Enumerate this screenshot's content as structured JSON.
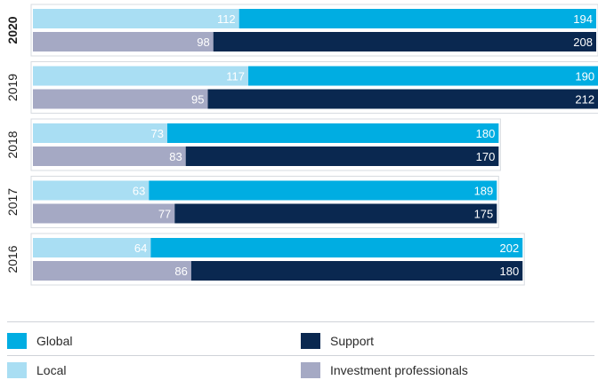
{
  "chart_data": {
    "type": "bar",
    "orientation": "horizontal-stacked",
    "groups": [
      "2020",
      "2019",
      "2018",
      "2017",
      "2016"
    ],
    "bold_group": "2020",
    "rows": [
      {
        "year": "2020",
        "top": {
          "local": 112,
          "global": 194
        },
        "bottom": {
          "investment_professionals": 98,
          "support": 208
        }
      },
      {
        "year": "2019",
        "top": {
          "local": 117,
          "global": 190
        },
        "bottom": {
          "investment_professionals": 95,
          "support": 212
        }
      },
      {
        "year": "2018",
        "top": {
          "local": 73,
          "global": 180
        },
        "bottom": {
          "investment_professionals": 83,
          "support": 170
        }
      },
      {
        "year": "2017",
        "top": {
          "local": 63,
          "global": 189
        },
        "bottom": {
          "investment_professionals": 77,
          "support": 175
        }
      },
      {
        "year": "2016",
        "top": {
          "local": 64,
          "global": 202
        },
        "bottom": {
          "investment_professionals": 86,
          "support": 180
        }
      }
    ],
    "series": [
      {
        "key": "global",
        "name": "Global",
        "color": "#00ade2"
      },
      {
        "key": "support",
        "name": "Support",
        "color": "#0a2850"
      },
      {
        "key": "local",
        "name": "Local",
        "color": "#a9def3"
      },
      {
        "key": "investment_professionals",
        "name": "Investment professionals",
        "color": "#a5a9c4"
      }
    ],
    "xlim": [
      0,
      306
    ],
    "grid": false,
    "legend_position": "bottom"
  },
  "legend": {
    "global": "Global",
    "support": "Support",
    "local": "Local",
    "investment_professionals": "Investment professionals"
  }
}
